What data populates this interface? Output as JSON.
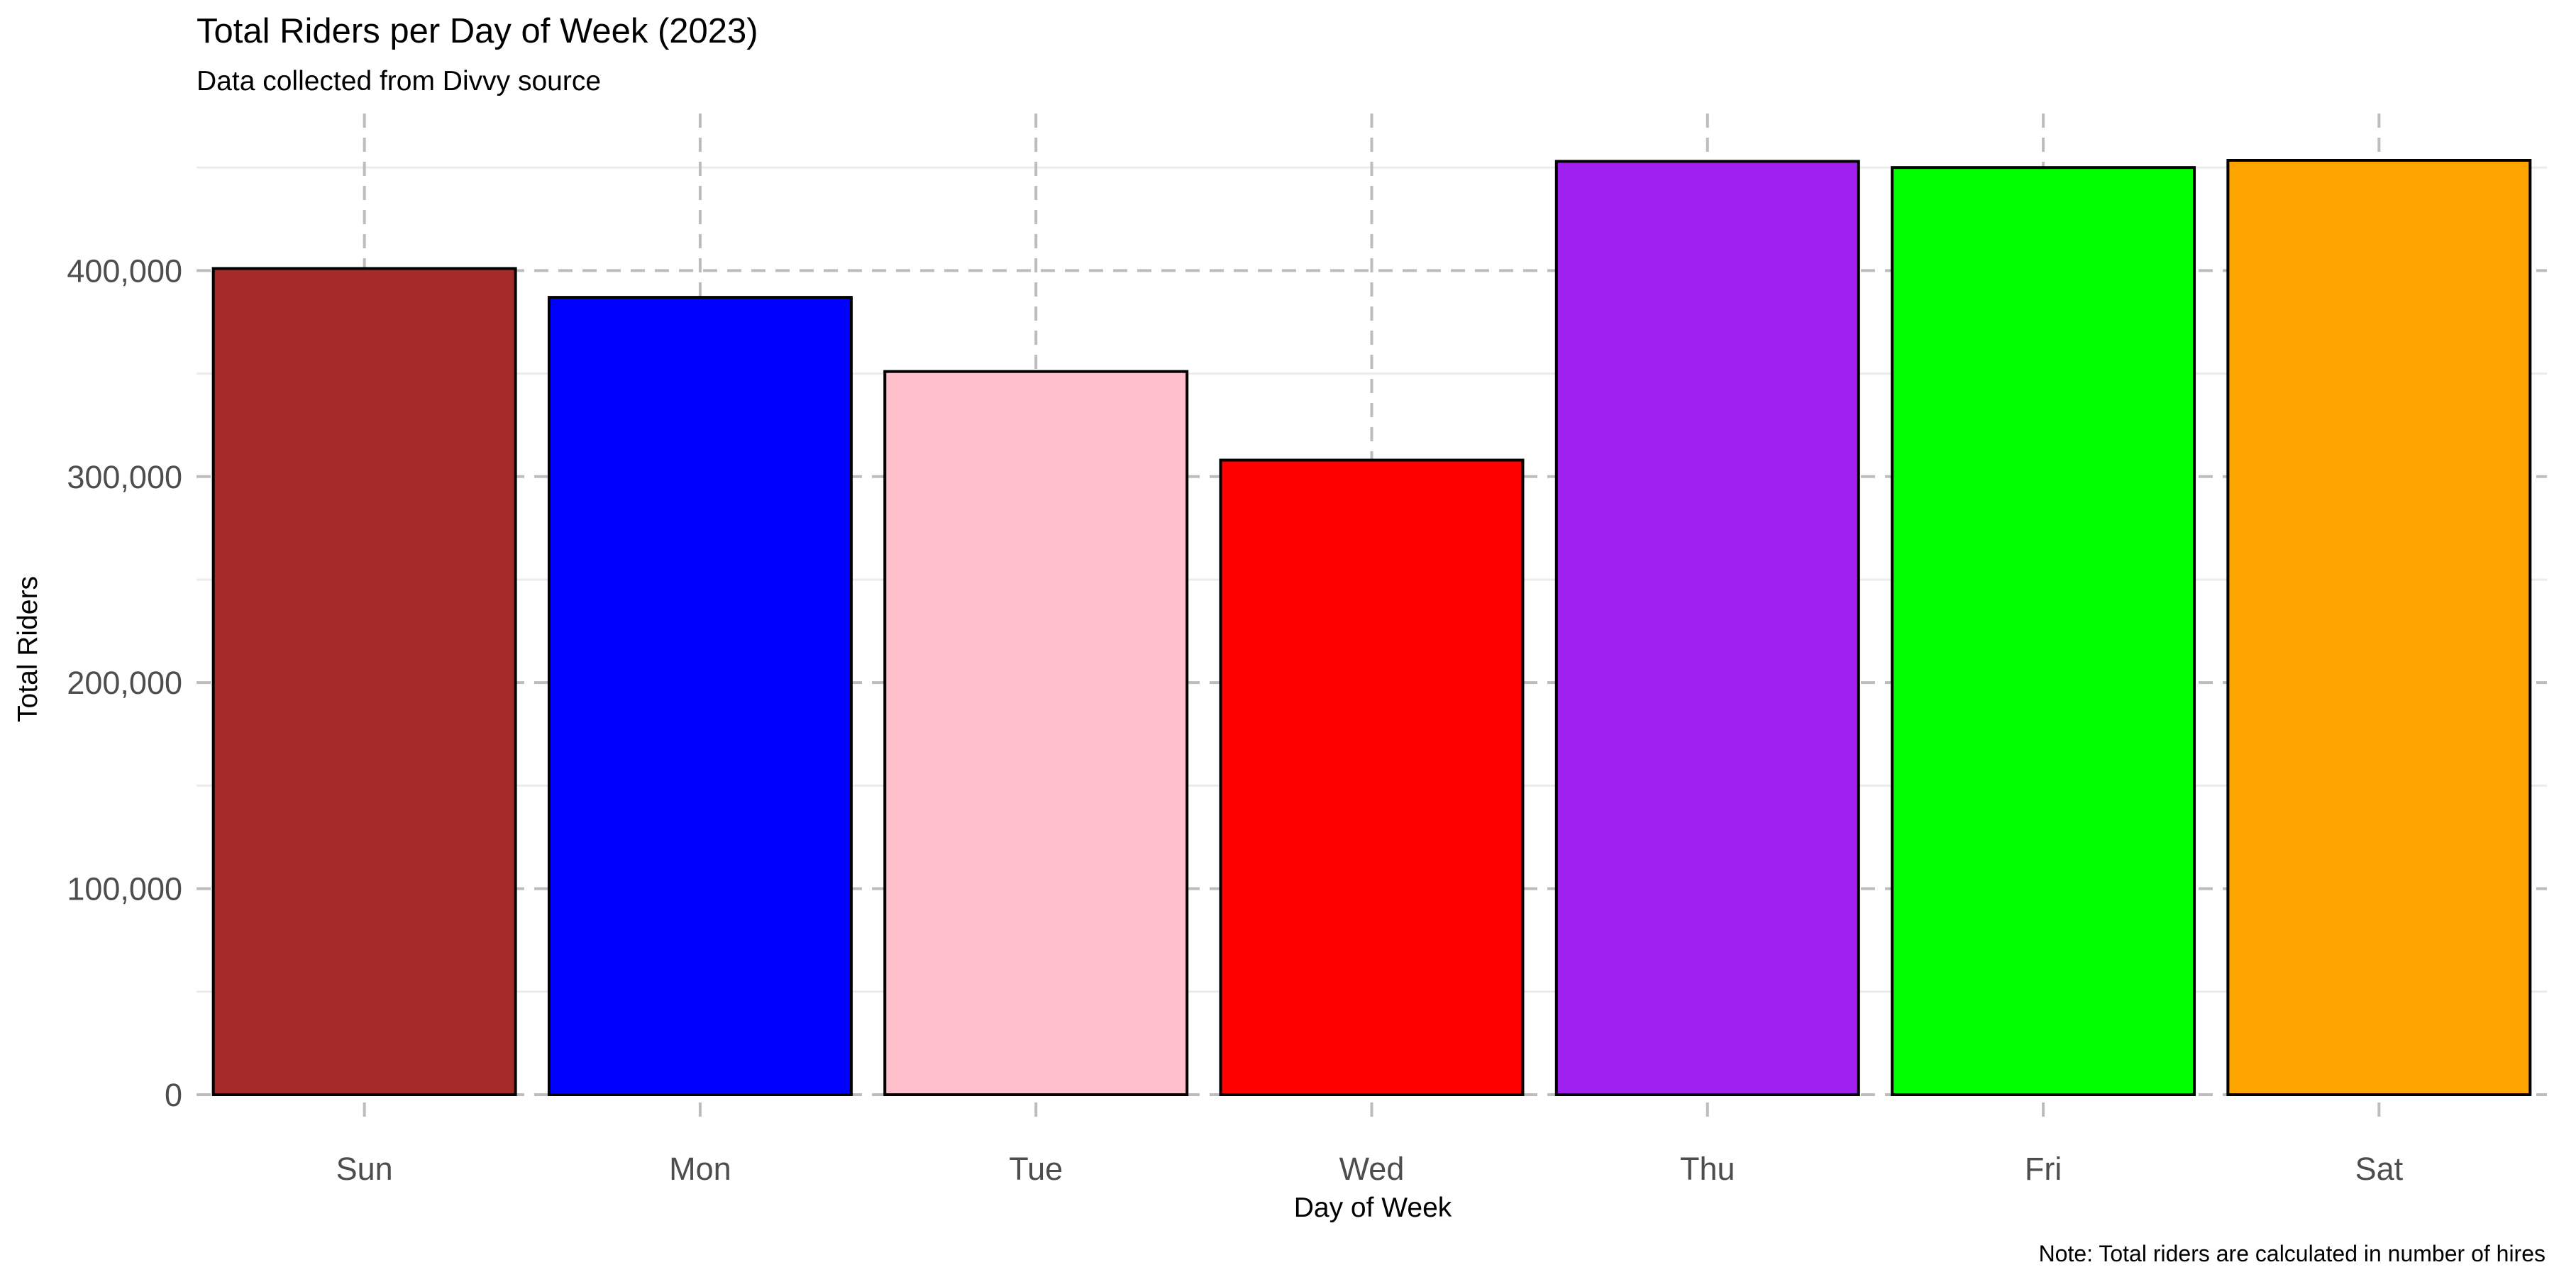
{
  "chart_data": {
    "type": "bar",
    "title": "Total Riders per Day of Week (2023)",
    "subtitle": "Data collected from Divvy source",
    "caption": "Note: Total riders are calculated in number of hires",
    "xlabel": "Day of Week",
    "ylabel": "Total Riders",
    "categories": [
      "Sun",
      "Mon",
      "Tue",
      "Wed",
      "Thu",
      "Fri",
      "Sat"
    ],
    "values": [
      401000,
      387000,
      351000,
      308000,
      453000,
      450000,
      453500
    ],
    "colors": [
      "#A52A2A",
      "#0000FF",
      "#FFC0CB",
      "#FF0000",
      "#A020F0",
      "#00FF00",
      "#FFA500"
    ],
    "ylim": [
      0,
      453500
    ],
    "yticks": [
      0,
      100000,
      200000,
      300000,
      400000
    ],
    "ytick_labels": [
      "0",
      "100,000",
      "200,000",
      "300,000",
      "400,000"
    ],
    "grid": true,
    "legend": "none"
  }
}
